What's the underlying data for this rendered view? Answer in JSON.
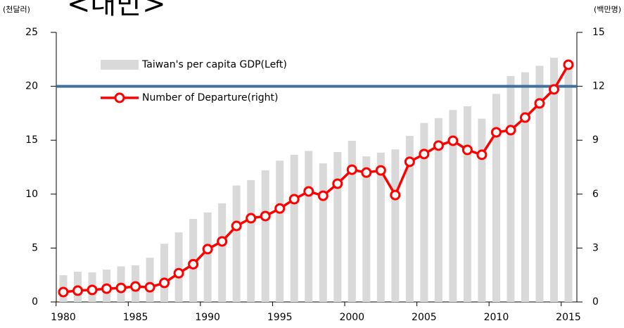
{
  "chart_data": {
    "type": "bar_line",
    "title": "<대만>",
    "y_label": "(천달러)",
    "y2_label": "(백만명)",
    "categories": [
      "1980",
      null,
      null,
      null,
      null,
      "1985",
      null,
      null,
      null,
      null,
      "1990",
      null,
      null,
      null,
      null,
      "1995",
      null,
      null,
      null,
      null,
      "2000",
      null,
      null,
      null,
      null,
      "2005",
      null,
      null,
      null,
      null,
      "2010",
      null,
      null,
      null,
      null,
      "2015"
    ],
    "series": [
      {
        "name": "Taiwan's per capita GDP(Left)",
        "type": "bar",
        "color": "#d9d9d9",
        "values": [
          2.48,
          2.8,
          2.74,
          3.0,
          3.3,
          3.4,
          4.1,
          5.4,
          6.45,
          7.7,
          8.3,
          9.15,
          10.8,
          11.3,
          12.2,
          13.1,
          13.65,
          14.0,
          12.85,
          13.9,
          14.95,
          13.5,
          13.85,
          14.15,
          15.4,
          16.6,
          17.05,
          17.8,
          18.15,
          17.0,
          19.3,
          20.95,
          21.3,
          21.9,
          22.65,
          22.3
        ]
      },
      {
        "name": "Number of Departure(right)",
        "type": "line",
        "axis": "y2",
        "color": "#ff0000",
        "values": [
          0.55,
          0.63,
          0.67,
          0.74,
          0.78,
          0.86,
          0.82,
          1.06,
          1.6,
          2.1,
          2.94,
          3.37,
          4.23,
          4.66,
          4.78,
          5.2,
          5.72,
          6.15,
          5.91,
          6.58,
          7.36,
          7.2,
          7.32,
          5.95,
          7.8,
          8.23,
          8.7,
          8.97,
          8.46,
          8.19,
          9.44,
          9.56,
          10.26,
          11.05,
          11.83,
          13.2
        ]
      }
    ],
    "reference_line": {
      "value": 20,
      "color": "#41719c"
    },
    "ylim": [
      0,
      25
    ],
    "yticks": [
      0,
      5,
      10,
      15,
      20,
      25
    ],
    "y2lim": [
      0,
      15
    ],
    "y2ticks": [
      0,
      3,
      6,
      9,
      12,
      15
    ],
    "legend": "upper left",
    "grid": false
  }
}
